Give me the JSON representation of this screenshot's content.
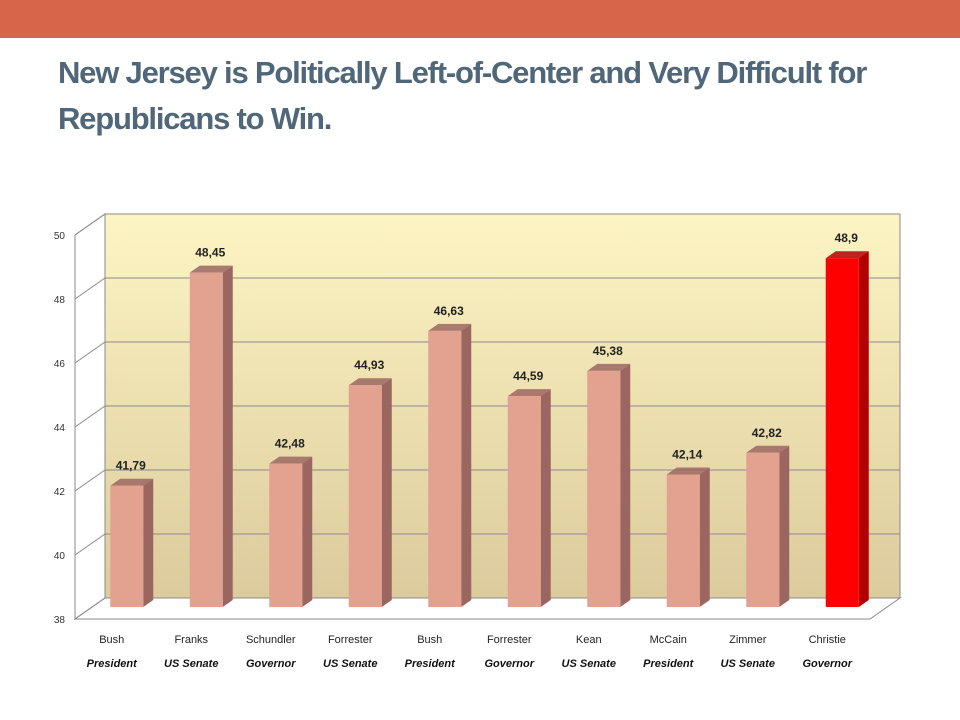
{
  "slide": {
    "title": "New Jersey is Politically Left-of-Center and Very Difficult for Republicans to Win."
  },
  "colors": {
    "top_bar": "#d6664a",
    "title": "#4f6778",
    "bar": "#e3a190",
    "bar_side": "#9b6660",
    "highlight_bar": "#ff0000",
    "highlight_side": "#b30000",
    "wall_top": "#fdf4c4",
    "wall_bottom": "#dccb9c",
    "grid": "#8a8a8a"
  },
  "chart_data": {
    "type": "bar",
    "title": "",
    "xlabel": "",
    "ylabel": "",
    "ylim": [
      38,
      50
    ],
    "yticks": [
      38,
      40,
      42,
      44,
      46,
      48,
      50
    ],
    "grid": true,
    "style": "3d",
    "categories": [
      "Bush",
      "Franks",
      "Schundler",
      "Forrester",
      "Bush",
      "Forrester",
      "Kean",
      "McCain",
      "Zimmer",
      "Christie"
    ],
    "subcategories": [
      "President",
      "US Senate",
      "Governor",
      "US Senate",
      "President",
      "Governor",
      "US Senate",
      "President",
      "US Senate",
      "Governor"
    ],
    "values": [
      41.79,
      48.45,
      42.48,
      44.93,
      46.63,
      44.59,
      45.38,
      42.14,
      42.82,
      48.9
    ],
    "data_labels": [
      "41,79",
      "48,45",
      "42,48",
      "44,93",
      "46,63",
      "44,59",
      "45,38",
      "42,14",
      "42,82",
      "48,9"
    ],
    "highlight_index": 9
  }
}
